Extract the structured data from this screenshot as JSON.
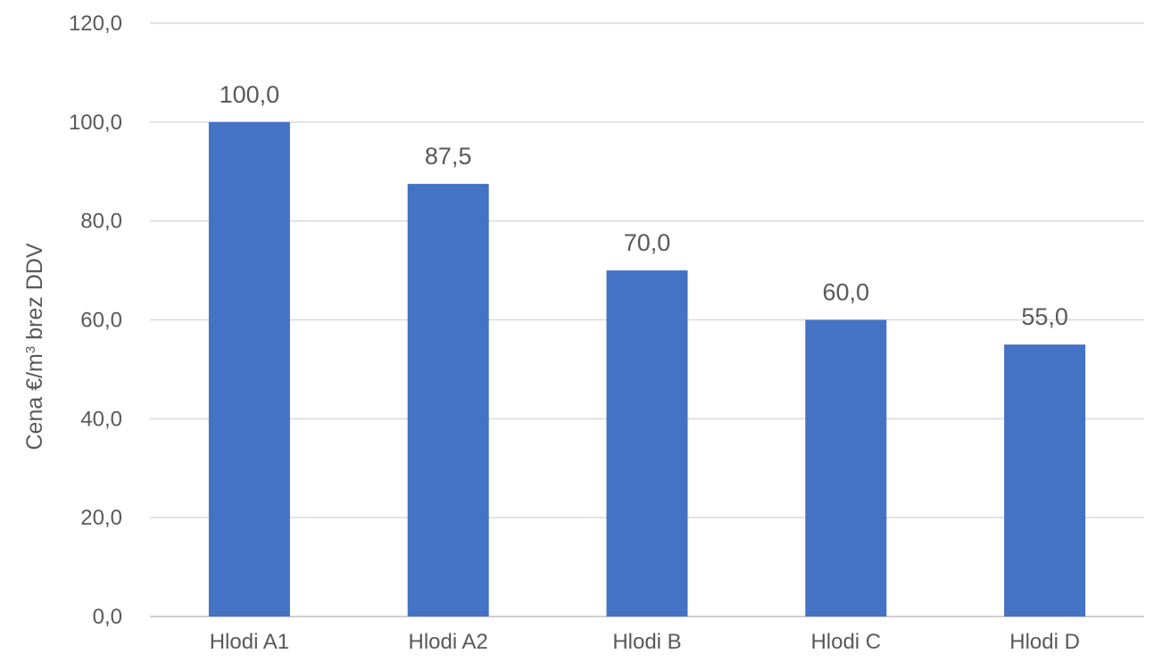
{
  "chart_data": {
    "type": "bar",
    "title": "",
    "xlabel": "",
    "ylabel": "Cena €/m3 brez DDV",
    "ylabel_parts": {
      "prefix": "Cena €/m",
      "superscript": "3",
      "suffix": " brez DDV"
    },
    "categories": [
      "Hlodi A1",
      "Hlodi A2",
      "Hlodi B",
      "Hlodi C",
      "Hlodi D"
    ],
    "values": [
      100.0,
      87.5,
      70.0,
      60.0,
      55.0
    ],
    "data_labels": [
      "100,0",
      "87,5",
      "70,0",
      "60,0",
      "55,0"
    ],
    "ylim": [
      0,
      120
    ],
    "yticks": [
      0,
      20,
      40,
      60,
      80,
      100,
      120
    ],
    "ytick_labels": [
      "0,0",
      "20,0",
      "40,0",
      "60,0",
      "80,0",
      "100,0",
      "120,0"
    ],
    "grid": true,
    "legend": "none",
    "bar_color": "#4472c4"
  }
}
